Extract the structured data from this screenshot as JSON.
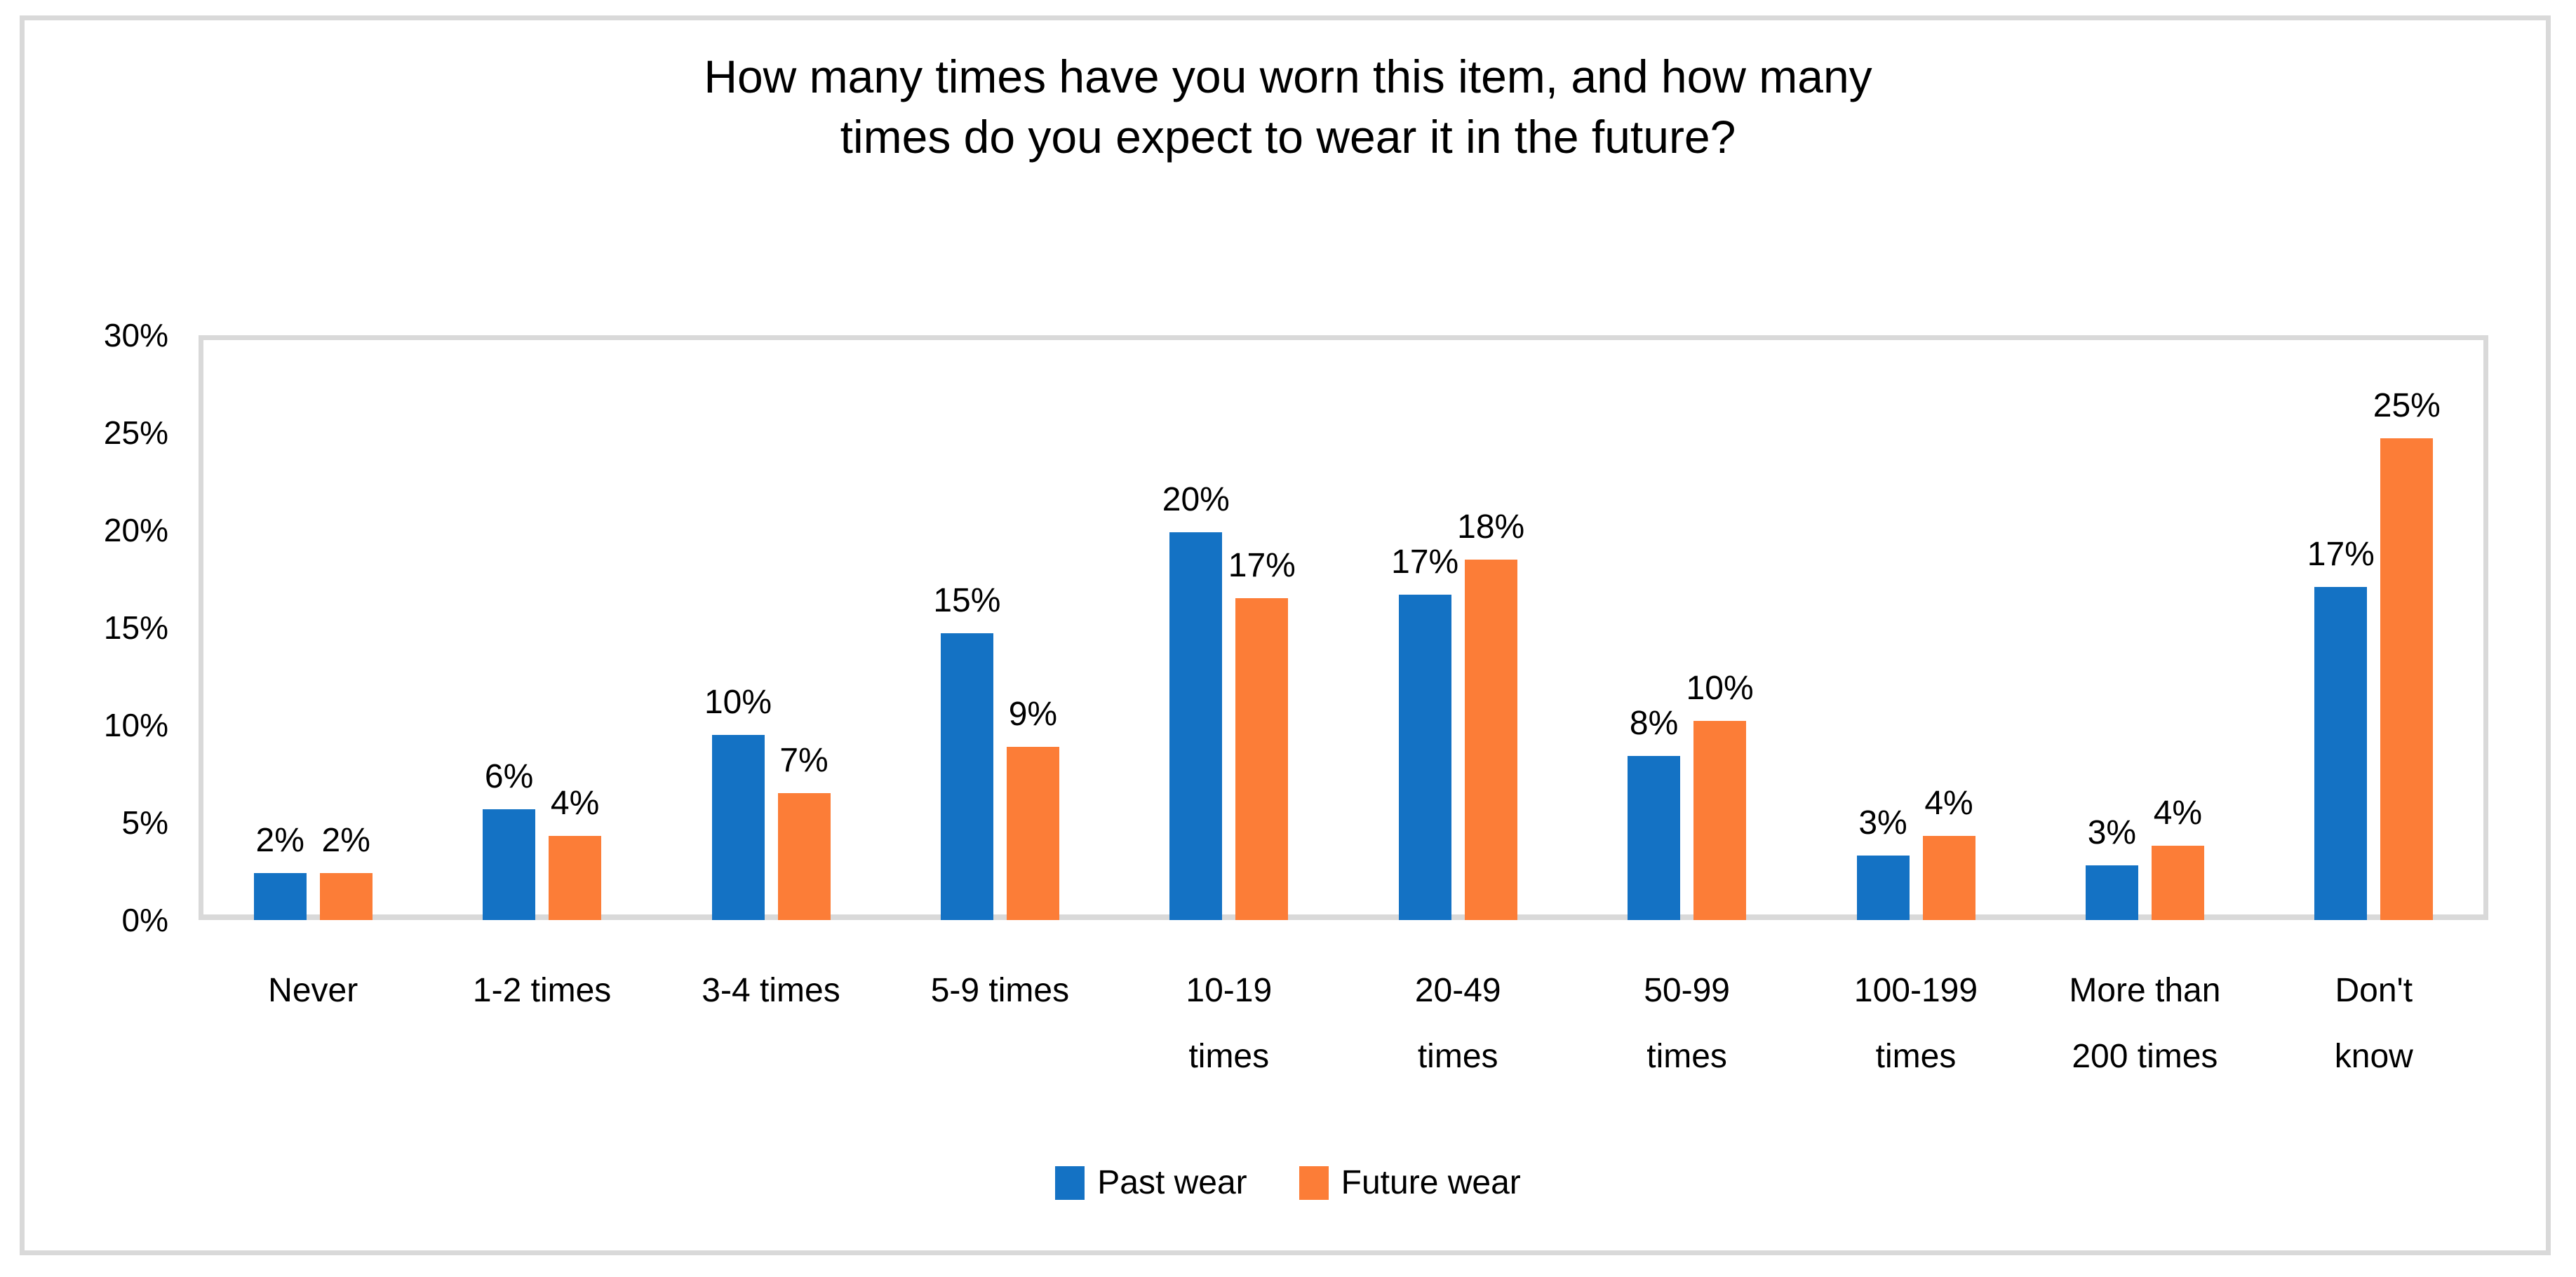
{
  "title": {
    "text": "How many times have you worn this item, and how many times do you expect to wear it in the future?",
    "line1": "How many times have you worn this item, and how many",
    "line2": "times do you expect to wear it in the future?"
  },
  "legend": {
    "past_label": "Past wear",
    "future_label": "Future wear"
  },
  "colors": {
    "past": "#1472c4",
    "future": "#fc7d37",
    "axis_gray": "#d9d9d9",
    "text": "#000000"
  },
  "chart_data": {
    "type": "bar",
    "title": "How many times have you worn this item, and how many times do you expect to wear it in the future?",
    "xlabel": "",
    "ylabel": "",
    "ylim": [
      0,
      30
    ],
    "yticks": [
      "0%",
      "5%",
      "10%",
      "15%",
      "20%",
      "25%",
      "30%"
    ],
    "ytick_values": [
      0,
      5,
      10,
      15,
      20,
      25,
      30
    ],
    "grid": false,
    "legend_position": "bottom",
    "categories": [
      "Never",
      "1-2 times",
      "3-4 times",
      "5-9 times",
      "10-19 times",
      "20-49 times",
      "50-99 times",
      "100-199 times",
      "More than 200 times",
      "Don't know"
    ],
    "category_label_lines": [
      [
        "Never"
      ],
      [
        "1-2 times"
      ],
      [
        "3-4 times"
      ],
      [
        "5-9 times"
      ],
      [
        "10-19",
        "times"
      ],
      [
        "20-49",
        "times"
      ],
      [
        "50-99",
        "times"
      ],
      [
        "100-199",
        "times"
      ],
      [
        "More than",
        "200 times"
      ],
      [
        "Don't",
        "know"
      ]
    ],
    "series": [
      {
        "name": "Past wear",
        "color": "#1472c4",
        "values": [
          2.4,
          5.7,
          9.5,
          14.7,
          19.9,
          16.7,
          8.4,
          3.3,
          2.8,
          17.1
        ],
        "data_labels": [
          "2%",
          "6%",
          "10%",
          "15%",
          "20%",
          "17%",
          "8%",
          "3%",
          "3%",
          "17%"
        ]
      },
      {
        "name": "Future wear",
        "color": "#fc7d37",
        "values": [
          2.4,
          4.3,
          6.5,
          8.9,
          16.5,
          18.5,
          10.2,
          4.3,
          3.8,
          24.7
        ],
        "data_labels": [
          "2%",
          "4%",
          "7%",
          "9%",
          "17%",
          "18%",
          "10%",
          "4%",
          "4%",
          "25%"
        ]
      }
    ]
  },
  "layout_note": "clustered column chart, no gridlines, light gray plot border"
}
